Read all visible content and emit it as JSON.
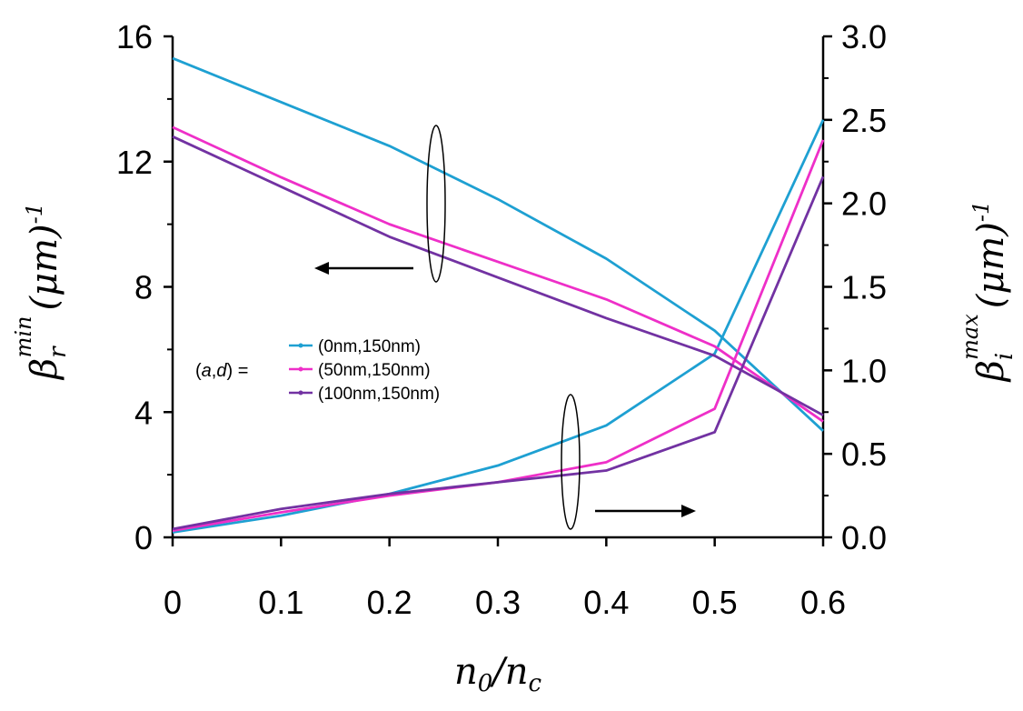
{
  "chart_data": {
    "type": "line",
    "title": "",
    "xlabel": "n0/nc",
    "x_ticks": [
      "0",
      "0.1",
      "0.2",
      "0.3",
      "0.4",
      "0.5",
      "0.6"
    ],
    "xlim": [
      0,
      0.6
    ],
    "y_left": {
      "label_main": "β",
      "label_sub": "r",
      "label_sup": "min",
      "label_unit": "(μm)",
      "label_unit_exp": "-1",
      "ylim": [
        0,
        16
      ],
      "ticks": [
        "0",
        "4",
        "8",
        "12",
        "16"
      ]
    },
    "y_right": {
      "label_main": "β",
      "label_sub": "i",
      "label_sup": "max",
      "label_unit": "(μm)",
      "label_unit_exp": "-1",
      "ylim": [
        0,
        3.0
      ],
      "ticks": [
        "0.0",
        "0.5",
        "1.0",
        "1.5",
        "2.0",
        "2.5",
        "3.0"
      ]
    },
    "legend": {
      "prefix": "(a,d) =",
      "placement": "center-left"
    },
    "x": [
      0,
      0.1,
      0.2,
      0.3,
      0.4,
      0.5,
      0.6
    ],
    "series": [
      {
        "name": "(0nm,150nm)",
        "color": "#1ea0d2",
        "beta_r_min": [
          15.3,
          13.9,
          12.5,
          10.8,
          8.9,
          6.6,
          3.4
        ],
        "beta_i_max": [
          0.03,
          0.13,
          0.26,
          0.43,
          0.67,
          1.1,
          2.5
        ]
      },
      {
        "name": "(50nm,150nm)",
        "color": "#ee2fc8",
        "beta_r_min": [
          13.1,
          11.5,
          10.0,
          8.8,
          7.6,
          6.1,
          3.7
        ],
        "beta_i_max": [
          0.04,
          0.15,
          0.25,
          0.33,
          0.45,
          0.77,
          2.38
        ]
      },
      {
        "name": "(100nm,150nm)",
        "color": "#7232a2",
        "beta_r_min": [
          12.8,
          11.2,
          9.6,
          8.3,
          7.0,
          5.8,
          3.9
        ],
        "beta_i_max": [
          0.05,
          0.17,
          0.26,
          0.33,
          0.4,
          0.63,
          2.16
        ]
      }
    ]
  }
}
